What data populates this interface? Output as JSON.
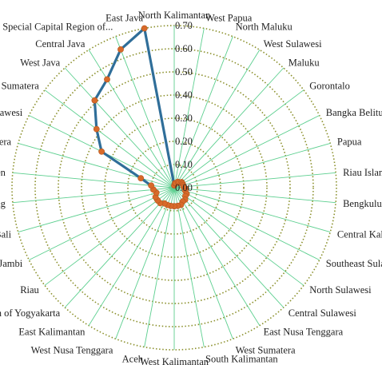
{
  "chart_data": {
    "type": "radar",
    "title": "",
    "categories": [
      "North Kalimantan",
      "West Papua",
      "North Maluku",
      "West Sulawesi",
      "Maluku",
      "Gorontalo",
      "Bangka Belitung Islands",
      "Papua",
      "Riau Islands",
      "Bengkulu",
      "Central Kalimantan",
      "Southeast Sulawesi",
      "North Sulawesi",
      "Central Sulawesi",
      "East Nusa Tenggara",
      "West Sumatera",
      "South Kalimantan",
      "West Kalimantan",
      "Aceh",
      "West Nusa Tenggara",
      "East Kalimantan",
      "Special Region of Yogyakarta",
      "Riau",
      "Jambi",
      "Bali",
      "Lampung",
      "Banten",
      "South Sumatera",
      "South Sulawesi",
      "North Sumatera",
      "West Java",
      "Central Java",
      "Special Capital Region of...",
      "East Java"
    ],
    "radial_ticks": [
      "0.00",
      "0.10",
      "0.20",
      "0.30",
      "0.40",
      "0.50",
      "0.60",
      "0.70"
    ],
    "rlim": [
      0,
      0.7
    ],
    "series": [
      {
        "color": "#2f6e99",
        "marker_color": "#d86a2a",
        "values": [
          0.01,
          0.02,
          0.02,
          0.03,
          0.03,
          0.04,
          0.04,
          0.04,
          0.04,
          0.05,
          0.05,
          0.06,
          0.06,
          0.07,
          0.07,
          0.08,
          0.08,
          0.08,
          0.08,
          0.08,
          0.08,
          0.09,
          0.09,
          0.09,
          0.08,
          0.09,
          0.1,
          0.15,
          0.35,
          0.42,
          0.51,
          0.55,
          0.64,
          0.7
        ]
      }
    ]
  }
}
